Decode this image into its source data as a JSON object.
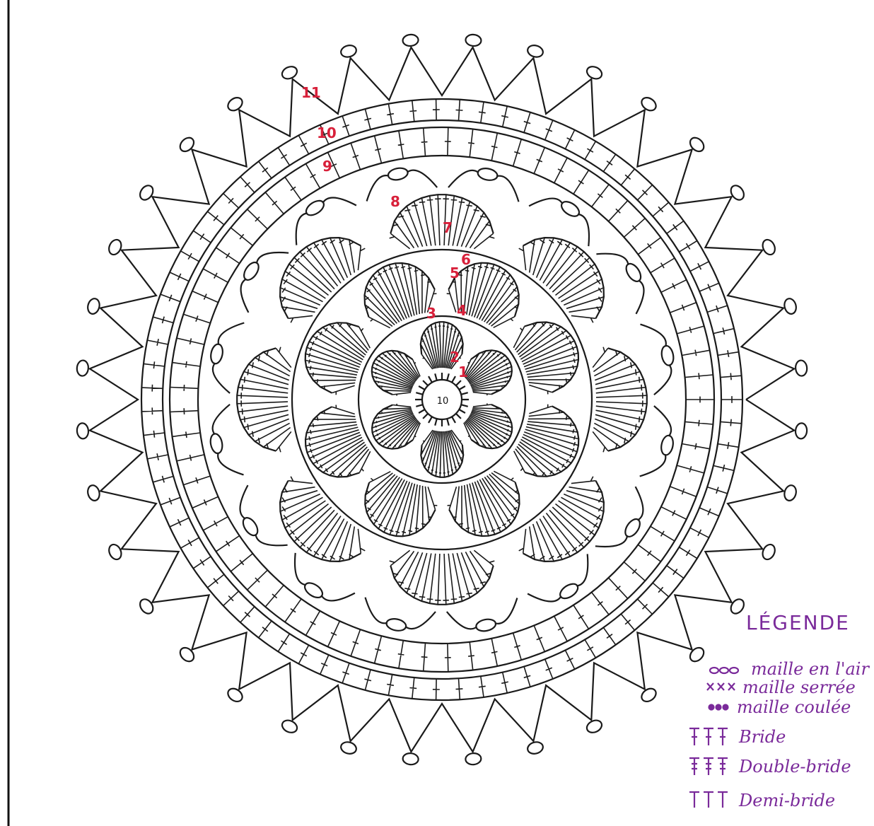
{
  "diagram": {
    "center_label": "10",
    "round_labels": [
      "1",
      "2",
      "3",
      "4",
      "5",
      "6",
      "7",
      "8",
      "9",
      "10",
      "11"
    ]
  },
  "legend": {
    "title": "LÉGENDE",
    "items": [
      {
        "label": "maille en l'air"
      },
      {
        "label": "maille serrée"
      },
      {
        "label": "maille coulée"
      },
      {
        "label": "Bride"
      },
      {
        "label": "Double-bride"
      },
      {
        "label": "Demi-bride"
      }
    ]
  }
}
